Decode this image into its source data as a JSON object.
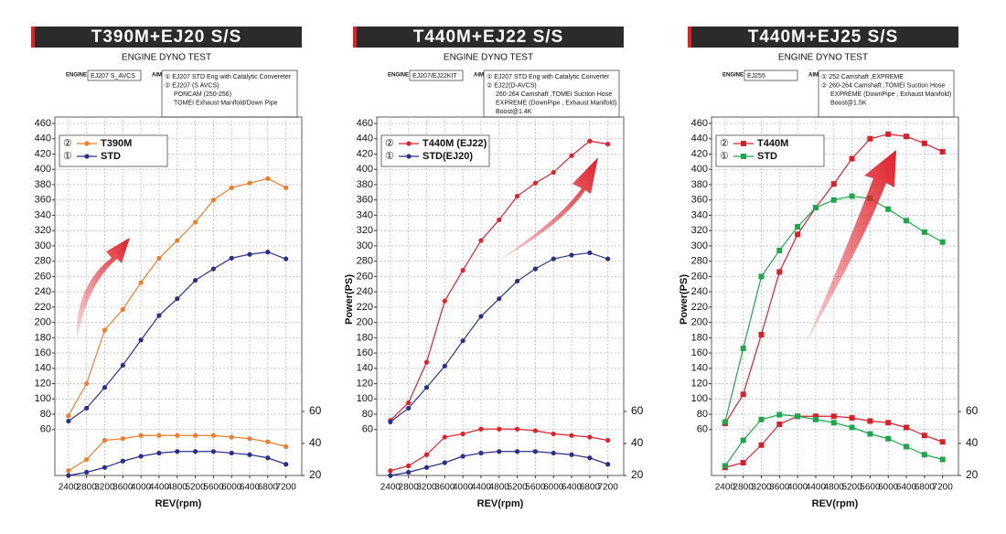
{
  "chart_data": [
    {
      "type": "line",
      "title": "T390M+EJ20 S/S",
      "subtitle": "ENGINE DYNO TEST",
      "engine_label": "ENGINE",
      "engine": "EJ207 S_AVCS",
      "aim_label": "AIM",
      "aim": [
        "① EJ207 STD Eng with Catalytic Convereter",
        "② EJ207 (S AVCS)",
        "PONCAM (250-256)",
        "TOMEI Exhaust Manifold/Down Pipe"
      ],
      "xlabel": "REV(rpm)",
      "x": [
        2400,
        2800,
        3200,
        3600,
        4000,
        4400,
        4800,
        5200,
        5600,
        6000,
        6400,
        6800,
        7200
      ],
      "xlim": [
        2100,
        7550
      ],
      "xticks": [
        2400,
        2800,
        3200,
        3600,
        4000,
        4400,
        4800,
        5200,
        5600,
        6000,
        6400,
        6800,
        7200
      ],
      "ylim": [
        0,
        460
      ],
      "yticks": [
        60,
        80,
        100,
        120,
        140,
        160,
        180,
        200,
        220,
        240,
        260,
        280,
        300,
        320,
        340,
        360,
        380,
        400,
        420,
        440,
        460
      ],
      "y2lim": [
        20,
        240
      ],
      "y2ticks": [
        20,
        40,
        60
      ],
      "grid": true,
      "series": [
        {
          "name": "T390M",
          "legend_symbol": "②",
          "color": "#ef7d2e",
          "marker": "circle",
          "values": [
            78,
            120,
            190,
            217,
            252,
            284,
            307,
            331,
            360,
            376,
            382,
            388,
            376
          ]
        },
        {
          "name": "STD",
          "legend_symbol": "①",
          "color": "#2a2f8c",
          "marker": "circle",
          "values": [
            71,
            88,
            115,
            144,
            177,
            209,
            231,
            255,
            270,
            284,
            289,
            292,
            283
          ]
        },
        {
          "axis": "y2",
          "color": "#ef7d2e",
          "marker": "circle",
          "values": [
            23,
            30,
            42,
            43,
            45,
            45,
            45,
            45,
            45,
            44,
            43,
            41,
            38
          ]
        },
        {
          "axis": "y2",
          "color": "#2a2f8c",
          "marker": "circle",
          "values": [
            20,
            22,
            25,
            29,
            32,
            34,
            35,
            35,
            35,
            34,
            33,
            31,
            27
          ]
        }
      ]
    },
    {
      "type": "line",
      "title": "T440M+EJ22 S/S",
      "subtitle": "ENGINE DYNO TEST",
      "engine_label": "ENGINE",
      "engine": "EJ207/EJ22KIT",
      "aim_label": "AIM",
      "aim": [
        "① EJ207 STD Eng with Catalytic Converter",
        "② EJ22(D-AVCS)",
        "260-264 Camshaft ,TOMEI Suction Hose",
        "EXPREME (DownPipe , Exhaust Manifold)",
        "Boost@1.4K"
      ],
      "xlabel": "REV(rpm)",
      "ylabel": "Power(PS)",
      "x": [
        2400,
        2800,
        3200,
        3600,
        4000,
        4400,
        4800,
        5200,
        5600,
        6000,
        6400,
        6800,
        7200
      ],
      "xlim": [
        2100,
        7550
      ],
      "xticks": [
        2400,
        2800,
        3200,
        3600,
        4000,
        4400,
        4800,
        5200,
        5600,
        6000,
        6400,
        6800,
        7200
      ],
      "ylim": [
        0,
        460
      ],
      "yticks": [
        60,
        80,
        100,
        120,
        140,
        160,
        180,
        200,
        220,
        240,
        260,
        280,
        300,
        320,
        340,
        360,
        380,
        400,
        420,
        440,
        460
      ],
      "y2lim": [
        20,
        240
      ],
      "y2ticks": [
        20,
        40,
        60
      ],
      "grid": true,
      "series": [
        {
          "name": "T440M (EJ22)",
          "legend_symbol": "②",
          "color": "#e0202a",
          "marker": "circle",
          "values": [
            72,
            95,
            148,
            228,
            268,
            307,
            334,
            365,
            382,
            396,
            418,
            437,
            433
          ]
        },
        {
          "name": "STD(EJ20)",
          "legend_symbol": "①",
          "color": "#2a2f8c",
          "marker": "circle",
          "values": [
            70,
            88,
            115,
            143,
            176,
            208,
            231,
            254,
            270,
            283,
            288,
            291,
            283
          ]
        },
        {
          "axis": "y2",
          "color": "#e0202a",
          "marker": "circle",
          "values": [
            23,
            26,
            33,
            44,
            46,
            49,
            49,
            49,
            48,
            46,
            45,
            44,
            42
          ]
        },
        {
          "axis": "y2",
          "color": "#2a2f8c",
          "marker": "circle",
          "values": [
            20,
            22,
            25,
            28,
            32,
            34,
            35,
            35,
            35,
            34,
            33,
            31,
            27
          ]
        }
      ]
    },
    {
      "type": "line",
      "title": "T440M+EJ25 S/S",
      "subtitle": "ENGINE DYNO TEST",
      "engine_label": "ENGINE",
      "engine": "EJ255",
      "aim_label": "AIM",
      "aim": [
        "① 252 Camshaft ,EXPREME",
        "② 260-264 Camshaft ,TOMEI Suction Hose",
        "EXPREME (DownPipe , Exhaust Manifold)",
        "Boost@1.5K"
      ],
      "xlabel": "REV(rpm)",
      "ylabel": "Power(PS)",
      "x": [
        2400,
        2800,
        3200,
        3600,
        4000,
        4400,
        4800,
        5200,
        5600,
        6000,
        6400,
        6800,
        7200
      ],
      "xlim": [
        2100,
        7550
      ],
      "xticks": [
        2400,
        2800,
        3200,
        3600,
        4000,
        4400,
        4800,
        5200,
        5600,
        6000,
        6400,
        6800,
        7200
      ],
      "ylim": [
        0,
        460
      ],
      "yticks": [
        60,
        80,
        100,
        120,
        140,
        160,
        180,
        200,
        220,
        240,
        260,
        280,
        300,
        320,
        340,
        360,
        380,
        400,
        420,
        440,
        460
      ],
      "y2lim": [
        20,
        240
      ],
      "y2ticks": [
        20,
        40,
        60
      ],
      "grid": true,
      "series": [
        {
          "name": "T440M",
          "legend_symbol": "②",
          "color": "#d9202a",
          "marker": "square",
          "values": [
            68,
            106,
            184,
            266,
            315,
            350,
            381,
            414,
            440,
            446,
            443,
            434,
            423
          ]
        },
        {
          "name": "STD",
          "legend_symbol": "①",
          "color": "#1fa64a",
          "marker": "square",
          "values": [
            70,
            166,
            260,
            294,
            325,
            350,
            360,
            365,
            362,
            348,
            333,
            318,
            305
          ]
        },
        {
          "axis": "y2",
          "color": "#d9202a",
          "marker": "square",
          "values": [
            25,
            28,
            39,
            52,
            57,
            57,
            57,
            56,
            54,
            53,
            50,
            45,
            41
          ]
        },
        {
          "axis": "y2",
          "color": "#1fa64a",
          "marker": "square",
          "values": [
            26,
            42,
            55,
            58,
            57,
            55,
            53,
            50,
            46,
            43,
            38,
            33,
            30
          ]
        }
      ]
    }
  ]
}
